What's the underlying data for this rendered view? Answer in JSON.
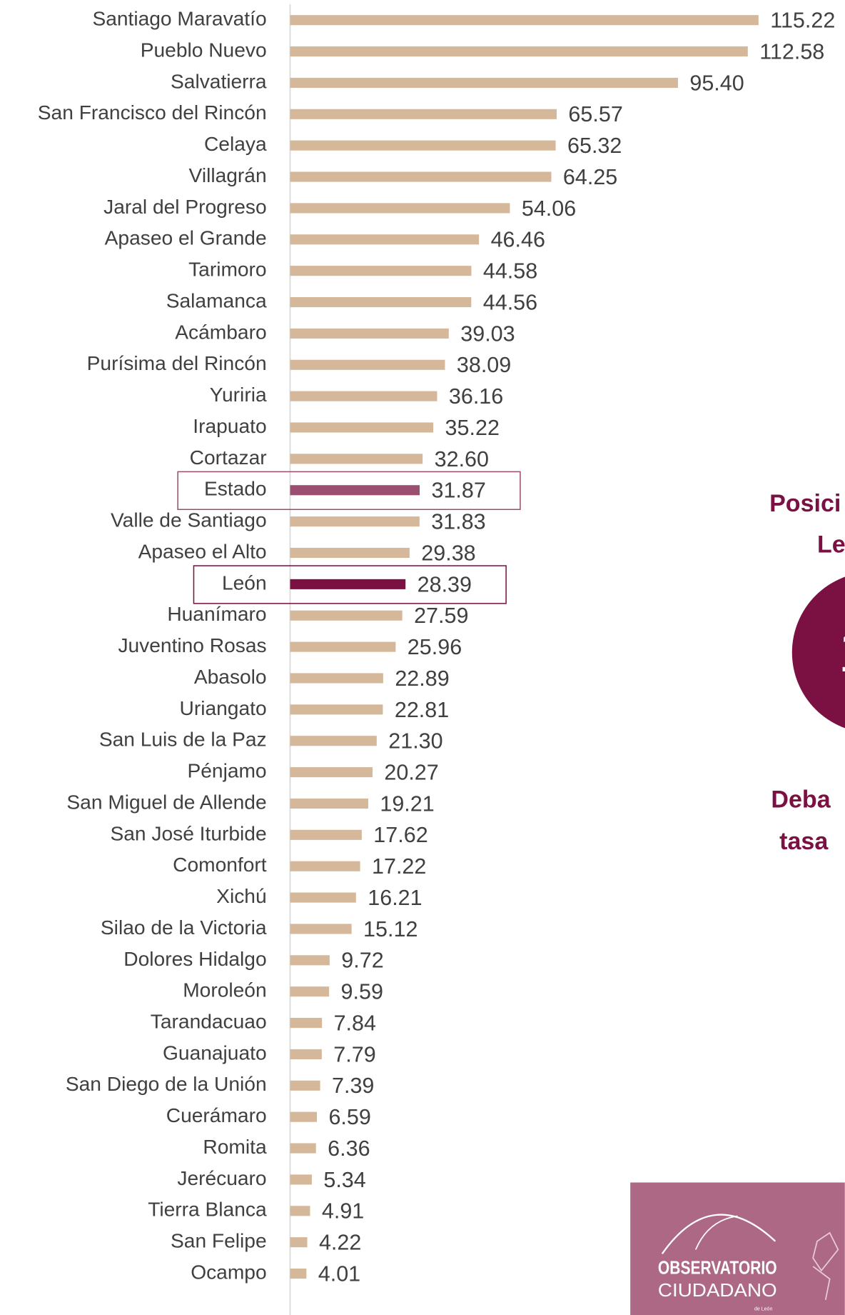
{
  "chart_data": {
    "type": "bar",
    "orientation": "horizontal",
    "categories": [
      "Santiago Maravatío",
      "Pueblo Nuevo",
      "Salvatierra",
      "San Francisco del Rincón",
      "Celaya",
      "Villagrán",
      "Jaral del Progreso",
      "Apaseo el Grande",
      "Tarimoro",
      "Salamanca",
      "Acámbaro",
      "Purísima del Rincón",
      "Yuriria",
      "Irapuato",
      "Cortazar",
      "Estado",
      "Valle de Santiago",
      "Apaseo el Alto",
      "León",
      "Huanímaro",
      "Juventino Rosas",
      "Abasolo",
      "Uriangato",
      "San Luis de la Paz",
      "Pénjamo",
      "San Miguel de Allende",
      "San José Iturbide",
      "Comonfort",
      "Xichú",
      "Silao de la Victoria",
      "Dolores Hidalgo",
      "Moroleón",
      "Tarandacuao",
      "Guanajuato",
      "San Diego de la Unión",
      "Cuerámaro",
      "Romita",
      "Jerécuaro",
      "Tierra Blanca",
      "San Felipe",
      "Ocampo"
    ],
    "values": [
      115.22,
      112.58,
      95.4,
      65.57,
      65.32,
      64.25,
      54.06,
      46.46,
      44.58,
      44.56,
      39.03,
      38.09,
      36.16,
      35.22,
      32.6,
      31.87,
      31.83,
      29.38,
      28.39,
      27.59,
      25.96,
      22.89,
      22.81,
      21.3,
      20.27,
      19.21,
      17.62,
      17.22,
      16.21,
      15.12,
      9.72,
      9.59,
      7.84,
      7.79,
      7.39,
      6.59,
      6.36,
      5.34,
      4.91,
      4.22,
      4.01
    ],
    "value_labels": [
      "115.22",
      "112.58",
      "95.40",
      "65.57",
      "65.32",
      "64.25",
      "54.06",
      "46.46",
      "44.58",
      "44.56",
      "39.03",
      "38.09",
      "36.16",
      "35.22",
      "32.60",
      "31.87",
      "31.83",
      "29.38",
      "28.39",
      "27.59",
      "25.96",
      "22.89",
      "22.81",
      "21.30",
      "20.27",
      "19.21",
      "17.62",
      "17.22",
      "16.21",
      "15.12",
      "9.72",
      "9.59",
      "7.84",
      "7.79",
      "7.39",
      "6.59",
      "6.36",
      "5.34",
      "4.91",
      "4.22",
      "4.01"
    ],
    "color": "#d5b799",
    "colors": [
      "#d5b799",
      "#d5b799",
      "#d5b799",
      "#d5b799",
      "#d5b799",
      "#d5b799",
      "#d5b799",
      "#d5b799",
      "#d5b799",
      "#d5b799",
      "#d5b799",
      "#d5b799",
      "#d5b799",
      "#d5b799",
      "#d5b799",
      "#9b4f70",
      "#d5b799",
      "#d5b799",
      "#7b1042",
      "#d5b799",
      "#d5b799",
      "#d5b799",
      "#d5b799",
      "#d5b799",
      "#d5b799",
      "#d5b799",
      "#d5b799",
      "#d5b799",
      "#d5b799",
      "#d5b799",
      "#d5b799",
      "#d5b799",
      "#d5b799",
      "#d5b799",
      "#d5b799",
      "#d5b799",
      "#d5b799",
      "#d5b799",
      "#d5b799",
      "#d5b799",
      "#d5b799"
    ]
  },
  "panel": {
    "heading": [
      "Posici",
      "Le"
    ],
    "rank": "1",
    "note": [
      "Deba",
      "tasa"
    ]
  },
  "logo": {
    "line1": "OBSERVATORIO",
    "line2": "CIUDADANO",
    "line3": "de León"
  }
}
